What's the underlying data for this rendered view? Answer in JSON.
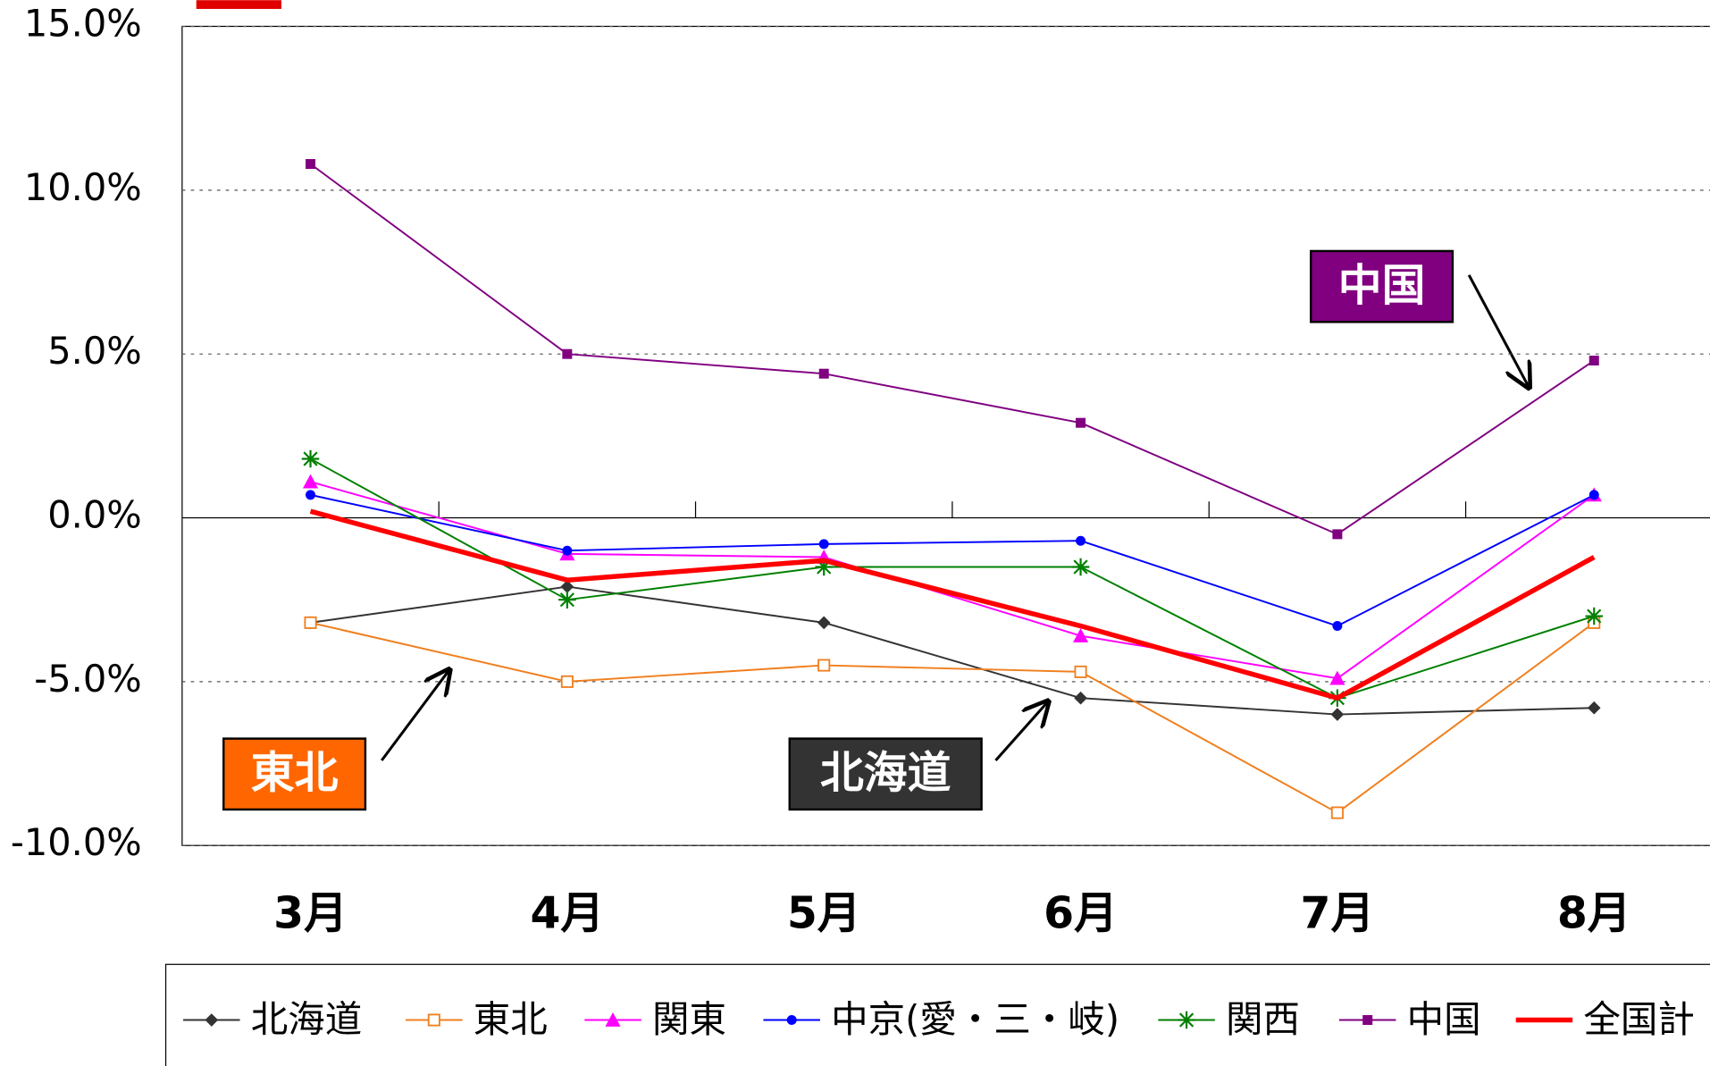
{
  "chart_data": {
    "type": "line",
    "categories": [
      "3月",
      "4月",
      "5月",
      "6月",
      "7月",
      "8月"
    ],
    "ylim": [
      -10,
      15
    ],
    "yticks": [
      {
        "value": -10,
        "label": "-10.0%"
      },
      {
        "value": -5,
        "label": "-5.0%"
      },
      {
        "value": 0,
        "label": "0.0%"
      },
      {
        "value": 5,
        "label": "5.0%"
      },
      {
        "value": 10,
        "label": "10.0%"
      },
      {
        "value": 15,
        "label": "15.0%"
      }
    ],
    "grid": true,
    "legend": "bottom",
    "series": [
      {
        "name": "北海道",
        "color": "#333333",
        "marker": "diamond",
        "values": [
          -3.2,
          -2.1,
          -3.2,
          -5.5,
          -6.0,
          -5.8
        ]
      },
      {
        "name": "東北",
        "color": "#f07f1e",
        "marker": "open-square",
        "values": [
          -3.2,
          -5.0,
          -4.5,
          -4.7,
          -9.0,
          -3.2
        ]
      },
      {
        "name": "関東",
        "color": "#ff00ff",
        "marker": "triangle",
        "values": [
          1.1,
          -1.1,
          -1.2,
          -3.6,
          -4.9,
          0.7
        ]
      },
      {
        "name": "中京(愛・三・岐)",
        "color": "#0000ff",
        "marker": "circle",
        "values": [
          0.7,
          -1.0,
          -0.8,
          -0.7,
          -3.3,
          0.7
        ]
      },
      {
        "name": "関西",
        "color": "#008000",
        "marker": "asterisk",
        "values": [
          1.8,
          -2.5,
          -1.5,
          -1.5,
          -5.5,
          -3.0
        ]
      },
      {
        "name": "中国",
        "color": "#800080",
        "marker": "square",
        "values": [
          10.8,
          5.0,
          4.4,
          2.9,
          -0.5,
          4.8
        ]
      },
      {
        "name": "全国計",
        "color": "#ff0000",
        "marker": "none",
        "values": [
          0.2,
          -1.9,
          -1.3,
          -3.3,
          -5.5,
          -1.2
        ]
      }
    ],
    "annotations": [
      {
        "text": "中国",
        "color": "#800080"
      },
      {
        "text": "東北",
        "color": "#ff6600"
      },
      {
        "text": "北海道",
        "color": "#333333"
      }
    ]
  }
}
